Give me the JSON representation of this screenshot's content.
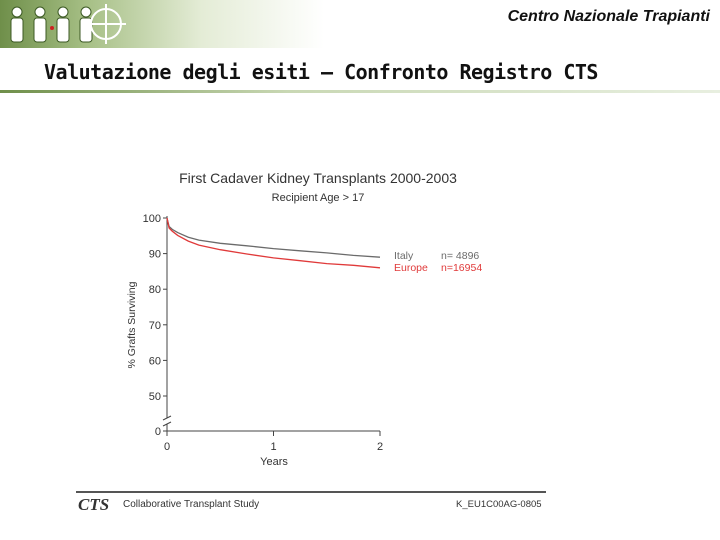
{
  "header": {
    "organization": "Centro Nazionale Trapianti",
    "slide_title": "Valutazione degli esiti – Confronto Registro CTS"
  },
  "footer": {
    "logo_text": "CTS",
    "study_name": "Collaborative Transplant Study",
    "doc_code": "K_EU1C00AG-0805"
  },
  "colors": {
    "italy": "#6b6b6b",
    "europe": "#e03a3a",
    "axis": "#444444"
  },
  "chart_data": {
    "type": "line",
    "title": "First Cadaver Kidney Transplants 2000-2003",
    "subtitle": "Recipient Age > 17",
    "xlabel": "Years",
    "ylabel": "% Grafts Surviving",
    "x_ticks": [
      "0",
      "1",
      "2"
    ],
    "y_ticks": [
      "100",
      "90",
      "80",
      "70",
      "60",
      "50",
      "0"
    ],
    "y_break": "axis break between 0 and 50",
    "xlim": [
      0,
      2
    ],
    "ylim": [
      45,
      100
    ],
    "series": [
      {
        "name": "Italy",
        "n_label": "n=  4896",
        "color_key": "italy",
        "x": [
          0,
          0.02,
          0.05,
          0.1,
          0.2,
          0.3,
          0.5,
          0.75,
          1.0,
          1.25,
          1.5,
          1.75,
          2.0
        ],
        "y": [
          100,
          97.6,
          96.8,
          95.9,
          94.6,
          93.8,
          92.9,
          92.2,
          91.4,
          90.8,
          90.2,
          89.5,
          89.0
        ]
      },
      {
        "name": "Europe",
        "n_label": "n=16954",
        "color_key": "europe",
        "x": [
          0,
          0.02,
          0.05,
          0.1,
          0.2,
          0.3,
          0.5,
          0.75,
          1.0,
          1.25,
          1.5,
          1.75,
          2.0
        ],
        "y": [
          100,
          97.2,
          96.3,
          95.1,
          93.5,
          92.4,
          91.1,
          89.9,
          88.8,
          88.0,
          87.2,
          86.7,
          86.0
        ]
      }
    ]
  }
}
